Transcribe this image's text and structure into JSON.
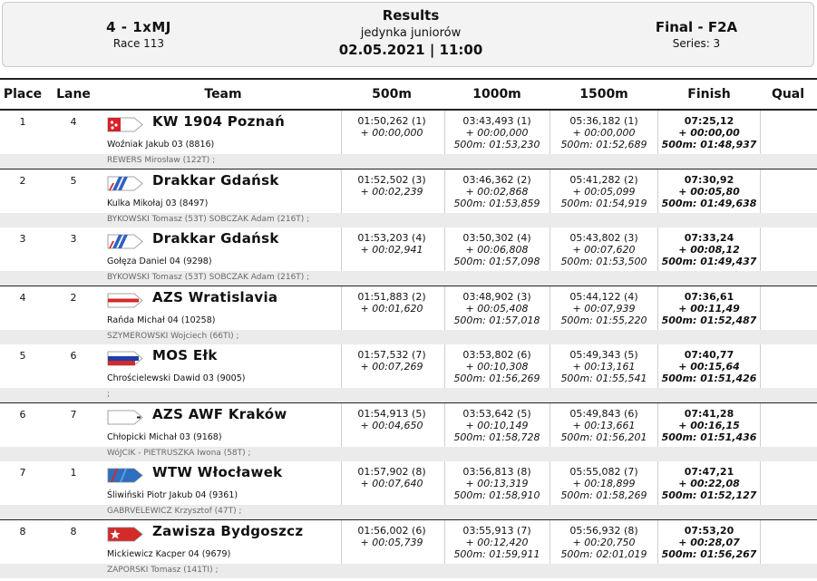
{
  "header": {
    "event": "4 - 1xMJ",
    "race": "Race 113",
    "title": "Results",
    "subtitle": "jedynka juniorów",
    "date": "02.05.2021 | 11:00",
    "final": "Final - F2A",
    "series": "Series: 3"
  },
  "columns": {
    "place": "Place",
    "lane": "Lane",
    "team": "Team",
    "s500": "500m",
    "s1000": "1000m",
    "s1500": "1500m",
    "finish": "Finish",
    "qual": "Qual"
  },
  "colors": {
    "band": "#ebebeb",
    "border": "#222222"
  },
  "rows": [
    {
      "place": "1",
      "lane": "4",
      "team": "KW 1904 Poznań",
      "flag": "kw1904-poznan-flag",
      "rower": "Woźniak Jakub 03 (8816)",
      "coach": "REWERS Mirosław (122T) ;",
      "s500": "01:50,262 (1)",
      "s500_diff": "+ 00:00,000",
      "s1000": "03:43,493 (1)",
      "s1000_diff": "+ 00:00,000",
      "s1000_split": "500m: 01:53,230",
      "s1500": "05:36,182 (1)",
      "s1500_diff": "+ 00:00,000",
      "s1500_split": "500m: 01:52,689",
      "finish": "07:25,12",
      "finish_diff": "+ 00:00,00",
      "finish_split": "500m: 01:48,937"
    },
    {
      "place": "2",
      "lane": "5",
      "team": "Drakkar Gdańsk",
      "flag": "drakkar-gdansk-flag",
      "rower": "Kulka Mikołaj 03 (8497)",
      "coach": "BYKOWSKI Tomasz (53T) SOBCZAK Adam (216T) ;",
      "s500": "01:52,502 (3)",
      "s500_diff": "+ 00:02,239",
      "s1000": "03:46,362 (2)",
      "s1000_diff": "+ 00:02,868",
      "s1000_split": "500m: 01:53,859",
      "s1500": "05:41,282 (2)",
      "s1500_diff": "+ 00:05,099",
      "s1500_split": "500m: 01:54,919",
      "finish": "07:30,92",
      "finish_diff": "+ 00:05,80",
      "finish_split": "500m: 01:49,638"
    },
    {
      "place": "3",
      "lane": "3",
      "team": "Drakkar Gdańsk",
      "flag": "drakkar-gdansk-flag",
      "rower": "Gołęza Daniel 04 (9298)",
      "coach": "BYKOWSKI Tomasz (53T) SOBCZAK Adam (216T) ;",
      "s500": "01:53,203 (4)",
      "s500_diff": "+ 00:02,941",
      "s1000": "03:50,302 (4)",
      "s1000_diff": "+ 00:06,808",
      "s1000_split": "500m: 01:57,098",
      "s1500": "05:43,802 (3)",
      "s1500_diff": "+ 00:07,620",
      "s1500_split": "500m: 01:53,500",
      "finish": "07:33,24",
      "finish_diff": "+ 00:08,12",
      "finish_split": "500m: 01:49,437"
    },
    {
      "place": "4",
      "lane": "2",
      "team": "AZS Wratislavia",
      "flag": "azs-wratislavia-flag",
      "rower": "Rańda Michał 04 (10258)",
      "coach": "SZYMEROWSKI Wojciech (66TI) ;",
      "s500": "01:51,883 (2)",
      "s500_diff": "+ 00:01,620",
      "s1000": "03:48,902 (3)",
      "s1000_diff": "+ 00:05,408",
      "s1000_split": "500m: 01:57,018",
      "s1500": "05:44,122 (4)",
      "s1500_diff": "+ 00:07,939",
      "s1500_split": "500m: 01:55,220",
      "finish": "07:36,61",
      "finish_diff": "+ 00:11,49",
      "finish_split": "500m: 01:52,487"
    },
    {
      "place": "5",
      "lane": "6",
      "team": "MOS Ełk",
      "flag": "mos-elk-flag",
      "rower": "Chrościelewski Dawid 03 (9005)",
      "coach": ";",
      "s500": "01:57,532 (7)",
      "s500_diff": "+ 00:07,269",
      "s1000": "03:53,802 (6)",
      "s1000_diff": "+ 00:10,308",
      "s1000_split": "500m: 01:56,269",
      "s1500": "05:49,343 (5)",
      "s1500_diff": "+ 00:13,161",
      "s1500_split": "500m: 01:55,541",
      "finish": "07:40,77",
      "finish_diff": "+ 00:15,64",
      "finish_split": "500m: 01:51,426"
    },
    {
      "place": "6",
      "lane": "7",
      "team": "AZS AWF Kraków",
      "flag": "azs-awf-krakow-flag",
      "rower": "Chłopicki Michał 03 (9168)",
      "coach": "WóJCIK - PIETRUSZKA Iwona (58T) ;",
      "s500": "01:54,913 (5)",
      "s500_diff": "+ 00:04,650",
      "s1000": "03:53,642 (5)",
      "s1000_diff": "+ 00:10,149",
      "s1000_split": "500m: 01:58,728",
      "s1500": "05:49,843 (6)",
      "s1500_diff": "+ 00:13,661",
      "s1500_split": "500m: 01:56,201",
      "finish": "07:41,28",
      "finish_diff": "+ 00:16,15",
      "finish_split": "500m: 01:51,436"
    },
    {
      "place": "7",
      "lane": "1",
      "team": "WTW Włocławek",
      "flag": "wtw-wloclawek-flag",
      "rower": "Śliwiński Piotr Jakub 04 (9361)",
      "coach": "GABRVELEWICZ Krzysztof (47T) ;",
      "s500": "01:57,902 (8)",
      "s500_diff": "+ 00:07,640",
      "s1000": "03:56,813 (8)",
      "s1000_diff": "+ 00:13,319",
      "s1000_split": "500m: 01:58,910",
      "s1500": "05:55,082 (7)",
      "s1500_diff": "+ 00:18,899",
      "s1500_split": "500m: 01:58,269",
      "finish": "07:47,21",
      "finish_diff": "+ 00:22,08",
      "finish_split": "500m: 01:52,127"
    },
    {
      "place": "8",
      "lane": "8",
      "team": "Zawisza Bydgoszcz",
      "flag": "zawisza-bydgoszcz-flag",
      "rower": "Mickiewicz Kacper 04 (9679)",
      "coach": "ZAPORSKI Tomasz (141TI) ;",
      "s500": "01:56,002 (6)",
      "s500_diff": "+ 00:05,739",
      "s1000": "03:55,913 (7)",
      "s1000_diff": "+ 00:12,420",
      "s1000_split": "500m: 01:59,911",
      "s1500": "05:56,932 (8)",
      "s1500_diff": "+ 00:20,750",
      "s1500_split": "500m: 02:01,019",
      "finish": "07:53,20",
      "finish_diff": "+ 00:28,07",
      "finish_split": "500m: 01:56,267"
    }
  ]
}
